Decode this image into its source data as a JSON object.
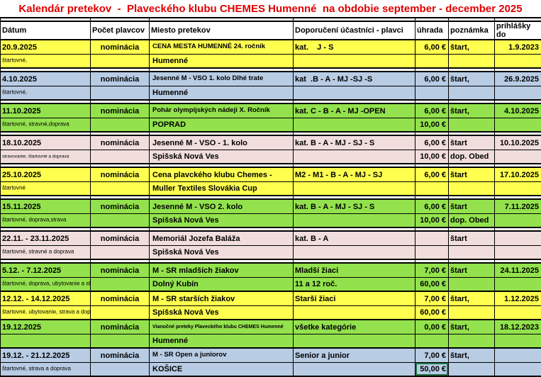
{
  "title": "Kalendár pretekov  -  Plaveckého klubu CHEMES Humenné  na obdobie september - december 2025",
  "columns": [
    "Dátum",
    "Počet plavcov",
    "Miesto pretekov",
    "Doporučení účastníci - plavci",
    "úhrada",
    "poznámka",
    "prihlášky do"
  ],
  "colors": {
    "title_red": "#E00000",
    "yellow": "#FFFF50",
    "green": "#93E24D",
    "blue": "#B8CCE4",
    "pink": "#F1DEDC",
    "selection_green": "#1E7145"
  },
  "events": [
    {
      "color": "yellow",
      "date": "20.9.2025",
      "fees_note": "štartovné,",
      "fees_tiny": false,
      "swimmers": "nominácia",
      "venue1": "CENA MESTA HUMENNÉ 24. ročník",
      "venue1_size": "s",
      "venue2": "Humenné",
      "part1": "kat.    J - S",
      "part2": "",
      "pay1": "6,00 €",
      "pay2": "",
      "pay2_selected": false,
      "note1": "štart,",
      "note2": "",
      "deadline": "1.9.2023",
      "separator_after": true
    },
    {
      "color": "blue",
      "date": "4.10.2025",
      "fees_note": "štartovné,",
      "fees_tiny": false,
      "swimmers": "nominácia",
      "venue1": "Jesenné M - VSO 1. kolo Dlhé trate",
      "venue1_size": "s",
      "venue2": "Humenné",
      "part1": "kat  .B - A - MJ -SJ -S",
      "part2": "",
      "pay1": "6,00 €",
      "pay2": "",
      "pay2_selected": false,
      "note1": "štart,",
      "note2": "",
      "deadline": "26.9.2025",
      "separator_after": true
    },
    {
      "color": "green",
      "date": "11.10.2025",
      "fees_note": "štartovné, stravné,doprava",
      "fees_tiny": false,
      "swimmers": "nominácia",
      "venue1": "Pohár olympijských nádeji X. Ročník",
      "venue1_size": "s",
      "venue2": "POPRAD",
      "part1": "kat. C - B - A - MJ -OPEN",
      "part2": "",
      "pay1": "6,00 €",
      "pay2": "10,00 €",
      "pay2_selected": false,
      "note1": "štart,",
      "note2": "",
      "deadline": "4.10.2025",
      "separator_after": true
    },
    {
      "color": "pink",
      "date": "18.10.2025",
      "fees_note": "stravovanie, štartovné a doprava",
      "fees_tiny": true,
      "swimmers": "nominácia",
      "venue1": "Jesenné M - VSO - 1. kolo",
      "venue1_size": "n",
      "venue2": "Spišská Nová Ves",
      "part1": "kat. B - A - MJ - SJ - S",
      "part2": "",
      "pay1": "6,00 €",
      "pay2": "10,00 €",
      "pay2_selected": false,
      "note1": "štart",
      "note2": "dop. Obed",
      "deadline": "10.10.2025",
      "separator_after": true
    },
    {
      "color": "yellow",
      "date": "25.10.2025",
      "fees_note": "štartovné",
      "fees_tiny": false,
      "swimmers": "nominácia",
      "venue1": "Cena plavckého klubu Chemes -",
      "venue1_size": "n",
      "venue2": "Muller Textiles Slovákia Cup",
      "part1": "M2 - M1 - B - A - MJ - SJ",
      "part2": "",
      "pay1": "6,00 €",
      "pay2": "",
      "pay2_selected": false,
      "note1": "štart",
      "note2": "",
      "deadline": "17.10.2025",
      "separator_after": true
    },
    {
      "color": "green",
      "date": "15.11.2025",
      "fees_note": "štartovné, doprava,strava",
      "fees_tiny": false,
      "swimmers": "nominácia",
      "venue1": "Jesenné M - VSO 2. kolo",
      "venue1_size": "n",
      "venue2": "Spišská Nová Ves",
      "part1": "kat. B - A - MJ - SJ - S",
      "part2": "",
      "pay1": "6,00 €",
      "pay2": "10,00 €",
      "pay2_selected": false,
      "note1": "štart",
      "note2": "dop. Obed",
      "deadline": "7.11.2025",
      "separator_after": true
    },
    {
      "color": "pink",
      "date": "22.11. - 23.11.2025",
      "fees_note": "štartovné, stravné a doprava",
      "fees_tiny": false,
      "swimmers": "nominácia",
      "venue1": "Memoriál Jozefa Baláža",
      "venue1_size": "n",
      "venue2": "Spišská Nová Ves",
      "part1": "kat. B - A",
      "part2": "",
      "pay1": "",
      "pay2": "",
      "pay2_selected": false,
      "note1": "štart",
      "note2": "",
      "deadline": "",
      "separator_after": true
    },
    {
      "color": "green",
      "date": "5.12. - 7.12.2025",
      "fees_note": "štartovné, doprava, ubytovanie a stravovanie",
      "fees_tiny": false,
      "swimmers": "nominácia",
      "venue1": "M - SR mladších žiakov",
      "venue1_size": "n",
      "venue2": "Dolný Kubín",
      "part1": "Mladší žiaci",
      "part2": "11 a 12 roč.",
      "pay1": "7,00 €",
      "pay2": "60,00 €",
      "pay2_selected": false,
      "note1": "štart",
      "note2": "",
      "deadline": "24.11.2025",
      "separator_after": false
    },
    {
      "color": "yellow",
      "date": "12.12. - 14.12.2025",
      "fees_note": "štartovné, ubytovanie, strava a doprava",
      "fees_tiny": false,
      "swimmers": "nominácia",
      "venue1": "M - SR starších žiakov",
      "venue1_size": "n",
      "venue2": "Spišská Nová Ves",
      "part1": "Starší žiaci",
      "part2": "",
      "pay1": "7,00 €",
      "pay2": "60,00 €",
      "pay2_selected": false,
      "note1": "štart,",
      "note2": "",
      "deadline": "1.12.2025",
      "separator_after": false
    },
    {
      "color": "green",
      "date": "19.12.2025",
      "fees_note": "",
      "fees_tiny": false,
      "swimmers": "nominácia",
      "venue1": "Vianočné preteky Plaveckého klubu CHEMES Humenné",
      "venue1_size": "xs",
      "venue2": "Humenné",
      "part1": "všetke kategórie",
      "part2": "",
      "pay1": "0,00 €",
      "pay2": "",
      "pay2_selected": false,
      "note1": "štart,",
      "note2": "",
      "deadline": "18.12.2023",
      "separator_after": false
    },
    {
      "color": "blue",
      "date": "19.12. - 21.12.2025",
      "fees_note": "štartovné, strava a doprava",
      "fees_tiny": false,
      "swimmers": "nominácia",
      "venue1": "M - SR Open a juniorov",
      "venue1_size": "s",
      "venue2": "KOŠICE",
      "part1": "Senior a junior",
      "part2": "",
      "pay1": "7,00 €",
      "pay2": "50,00 €",
      "pay2_selected": true,
      "note1": "štart,",
      "note2": "",
      "deadline": "",
      "separator_after": false
    }
  ]
}
